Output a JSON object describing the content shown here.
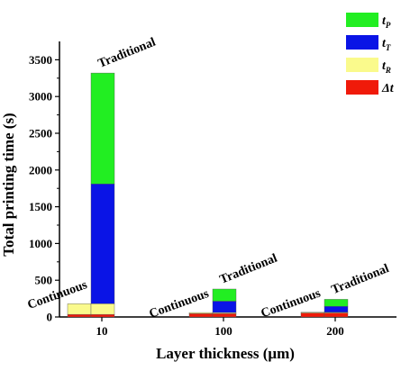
{
  "chart_data": {
    "type": "bar",
    "stacked": true,
    "xlabel": "Layer thickness (μm)",
    "ylabel": "Total printing time (s)",
    "ylim": [
      0,
      3750
    ],
    "yticks": [
      0,
      500,
      1000,
      1500,
      2000,
      2500,
      3000,
      3500
    ],
    "categories": [
      "10",
      "100",
      "200"
    ],
    "bar_groups": [
      {
        "category": "10",
        "bars": [
          {
            "label": "Continuous",
            "segments": {
              "Δt": 35,
              "t_R": 145,
              "t_T": 0,
              "t_P": 0
            }
          },
          {
            "label": "Traditional",
            "segments": {
              "Δt": 35,
              "t_R": 145,
              "t_T": 1630,
              "t_P": 1510
            }
          }
        ]
      },
      {
        "category": "100",
        "bars": [
          {
            "label": "Continuous",
            "segments": {
              "Δt": 45,
              "t_R": 15,
              "t_T": 0,
              "t_P": 0
            }
          },
          {
            "label": "Traditional",
            "segments": {
              "Δt": 45,
              "t_R": 15,
              "t_T": 155,
              "t_P": 165
            }
          }
        ]
      },
      {
        "category": "200",
        "bars": [
          {
            "label": "Continuous",
            "segments": {
              "Δt": 55,
              "t_R": 10,
              "t_T": 0,
              "t_P": 0
            }
          },
          {
            "label": "Traditional",
            "segments": {
              "Δt": 55,
              "t_R": 10,
              "t_T": 80,
              "t_P": 95
            }
          }
        ]
      }
    ],
    "series": [
      {
        "name": "t_P",
        "color": "#22ee22"
      },
      {
        "name": "t_T",
        "color": "#0a14e6"
      },
      {
        "name": "t_R",
        "color": "#fafa8c"
      },
      {
        "name": "Δt",
        "color": "#f01a0a"
      }
    ],
    "stack_order": [
      "Δt",
      "t_R",
      "t_T",
      "t_P"
    ],
    "legend_position": "top-right"
  }
}
